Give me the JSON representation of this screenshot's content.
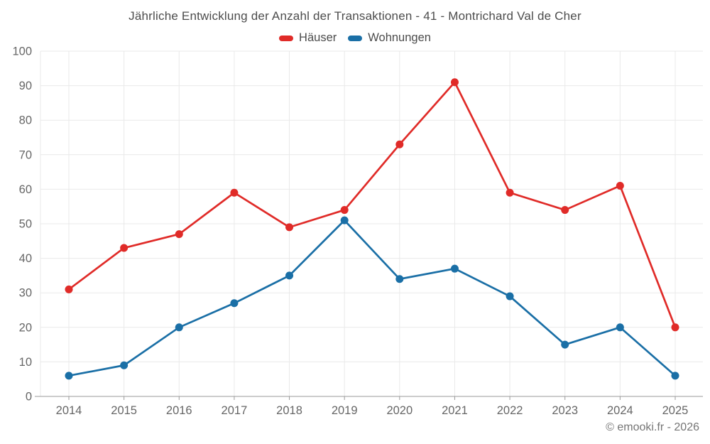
{
  "footer": {
    "copyright": "© emooki.fr - 2026"
  },
  "colors": {
    "hauser_red": "#e02b28",
    "wohnungen_blue": "#1a6fa6",
    "grid_line": "#e9e9e9",
    "axis_line": "#9a9a9a",
    "axis_label": "#666666",
    "title_text": "#4c4c4c"
  },
  "chart_data": {
    "type": "line",
    "title": "Jährliche Entwicklung der Anzahl der Transaktionen - 41 - Montrichard Val de Cher",
    "categories": [
      "2014",
      "2015",
      "2016",
      "2017",
      "2018",
      "2019",
      "2020",
      "2021",
      "2022",
      "2023",
      "2024",
      "2025"
    ],
    "series": [
      {
        "name": "Häuser",
        "color": "#e02b28",
        "values": [
          31,
          43,
          47,
          59,
          49,
          54,
          73,
          91,
          59,
          54,
          61,
          20
        ]
      },
      {
        "name": "Wohnungen",
        "color": "#1a6fa6",
        "values": [
          6,
          9,
          20,
          27,
          35,
          51,
          34,
          37,
          29,
          15,
          20,
          6
        ]
      }
    ],
    "xlabel": "",
    "ylabel": "",
    "ylim": [
      0,
      100
    ],
    "ytick_step": 10,
    "grid": true,
    "legend_position": "top",
    "marker": "circle"
  }
}
